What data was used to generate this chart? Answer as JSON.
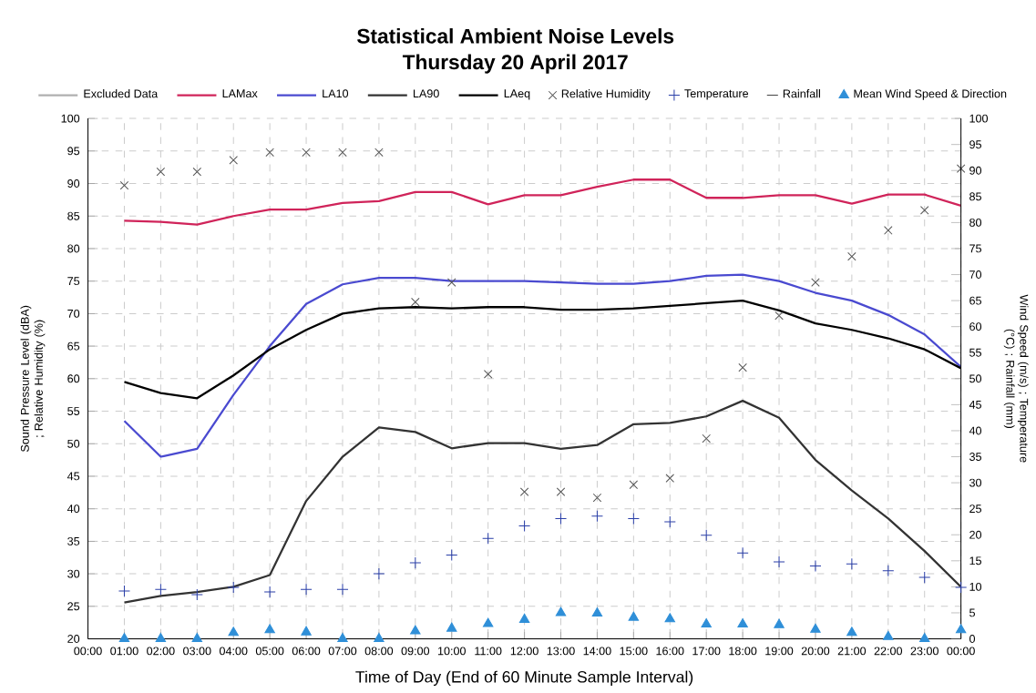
{
  "chart_data": {
    "type": "line",
    "title": "Statistical Ambient Noise Levels",
    "subtitle": "Thursday 20 April 2017",
    "xlabel": "Time of Day (End of 60 Minute Sample Interval)",
    "ylabel": "Sound Pressure Level (dBA) ; Relative Humidity (%)",
    "y2label": "Wind Speed (m/s) ; Temperature (°C) ; Rainfall (mm)",
    "x": [
      1,
      2,
      3,
      4,
      5,
      6,
      7,
      8,
      9,
      10,
      11,
      12,
      13,
      14,
      15,
      16,
      17,
      18,
      19,
      20,
      21,
      22,
      23,
      24
    ],
    "xlim": [
      0,
      24
    ],
    "xticks": [
      {
        "value": 0,
        "label": "00:00"
      },
      {
        "value": 1,
        "label": "01:00"
      },
      {
        "value": 2,
        "label": "02:00"
      },
      {
        "value": 3,
        "label": "03:00"
      },
      {
        "value": 4,
        "label": "04:00"
      },
      {
        "value": 5,
        "label": "05:00"
      },
      {
        "value": 6,
        "label": "06:00"
      },
      {
        "value": 7,
        "label": "07:00"
      },
      {
        "value": 8,
        "label": "08:00"
      },
      {
        "value": 9,
        "label": "09:00"
      },
      {
        "value": 10,
        "label": "10:00"
      },
      {
        "value": 11,
        "label": "11:00"
      },
      {
        "value": 12,
        "label": "12:00"
      },
      {
        "value": 13,
        "label": "13:00"
      },
      {
        "value": 14,
        "label": "14:00"
      },
      {
        "value": 15,
        "label": "15:00"
      },
      {
        "value": 16,
        "label": "16:00"
      },
      {
        "value": 17,
        "label": "17:00"
      },
      {
        "value": 18,
        "label": "18:00"
      },
      {
        "value": 19,
        "label": "19:00"
      },
      {
        "value": 20,
        "label": "20:00"
      },
      {
        "value": 21,
        "label": "21:00"
      },
      {
        "value": 22,
        "label": "22:00"
      },
      {
        "value": 23,
        "label": "23:00"
      },
      {
        "value": 24,
        "label": "00:00"
      }
    ],
    "ylim": [
      20,
      100
    ],
    "yticks": [
      20,
      25,
      30,
      35,
      40,
      45,
      50,
      55,
      60,
      65,
      70,
      75,
      80,
      85,
      90,
      95,
      100
    ],
    "y2lim": [
      0,
      100
    ],
    "y2ticks": [
      0,
      5,
      10,
      15,
      20,
      25,
      30,
      35,
      40,
      45,
      50,
      55,
      60,
      65,
      70,
      75,
      80,
      85,
      90,
      95,
      100
    ],
    "grid": true,
    "legend": "top",
    "series": [
      {
        "name": "Excluded Data",
        "color": "#b0b0b0",
        "values": [
          null,
          null,
          null,
          null,
          null,
          null,
          null,
          null,
          null,
          null,
          null,
          null,
          null,
          null,
          null,
          null,
          null,
          null,
          null,
          null,
          null,
          null,
          null,
          null
        ]
      },
      {
        "name": "LAMax",
        "color": "#d0245a",
        "values": [
          84.3,
          84.1,
          83.7,
          85,
          86,
          86,
          87,
          87.3,
          88.7,
          88.7,
          86.8,
          88.2,
          88.2,
          89.5,
          90.6,
          90.6,
          87.8,
          87.8,
          88.2,
          88.2,
          86.9,
          88.3,
          88.3,
          86.6
        ]
      },
      {
        "name": "LA10",
        "color": "#4a4ad0",
        "values": [
          53.5,
          48,
          49.2,
          57.5,
          65,
          71.5,
          74.5,
          75.5,
          75.5,
          75,
          75,
          75,
          74.8,
          74.6,
          74.6,
          75,
          75.8,
          76,
          75,
          73.2,
          72,
          69.8,
          66.8,
          61.8
        ]
      },
      {
        "name": "LA90",
        "color": "#333333",
        "values": [
          25.6,
          26.6,
          27.2,
          28,
          29.8,
          41.2,
          48,
          52.5,
          51.8,
          49.3,
          50.1,
          50.1,
          49.2,
          49.8,
          53,
          53.2,
          54.2,
          56.6,
          54,
          47.5,
          42.8,
          38.5,
          33.5,
          28
        ]
      },
      {
        "name": "LAeq",
        "color": "#000000",
        "values": [
          59.5,
          57.8,
          57,
          60.5,
          64.5,
          67.5,
          70,
          70.8,
          71,
          70.8,
          71,
          71,
          70.6,
          70.6,
          70.8,
          71.2,
          71.6,
          72,
          70.5,
          68.5,
          67.5,
          66.2,
          64.5,
          61.6
        ]
      },
      {
        "name": "Relative Humidity",
        "type": "scatter",
        "marker": "cross",
        "color": "#555555",
        "values": [
          89.7,
          91.8,
          91.8,
          93.6,
          94.8,
          94.8,
          94.8,
          94.8,
          71.8,
          74.8,
          60.7,
          42.6,
          42.6,
          41.7,
          43.7,
          44.7,
          50.8,
          61.7,
          69.7,
          74.8,
          78.8,
          82.8,
          85.9,
          92.3
        ]
      },
      {
        "name": "Temperature",
        "type": "scatter",
        "marker": "plus",
        "axis": "y2",
        "color": "#2a3fa8",
        "values": [
          9.2,
          9.5,
          8.5,
          9.9,
          9,
          9.5,
          9.5,
          12.5,
          14.6,
          16.1,
          19.3,
          21.7,
          23.1,
          23.6,
          23.1,
          22.5,
          19.9,
          16.5,
          14.8,
          14,
          14.4,
          13.1,
          11.8,
          9.9
        ]
      },
      {
        "name": "Rainfall",
        "type": "scatter",
        "marker": "dash",
        "axis": "y2",
        "color": "#444444",
        "values": [
          null,
          null,
          null,
          null,
          null,
          null,
          null,
          null,
          null,
          null,
          null,
          null,
          null,
          null,
          null,
          null,
          null,
          null,
          null,
          null,
          null,
          null,
          null,
          null
        ]
      },
      {
        "name": "Mean Wind Speed & Direction",
        "type": "scatter",
        "marker": "triangle",
        "axis": "y2",
        "color": "#2f8fd8",
        "values": [
          0,
          0,
          0,
          1.2,
          1.7,
          1.3,
          0,
          0,
          1.5,
          2,
          2.9,
          3.7,
          5,
          4.9,
          4.1,
          3.8,
          2.8,
          2.8,
          2.7,
          1.8,
          1.2,
          0.4,
          0,
          1.7
        ]
      }
    ]
  }
}
